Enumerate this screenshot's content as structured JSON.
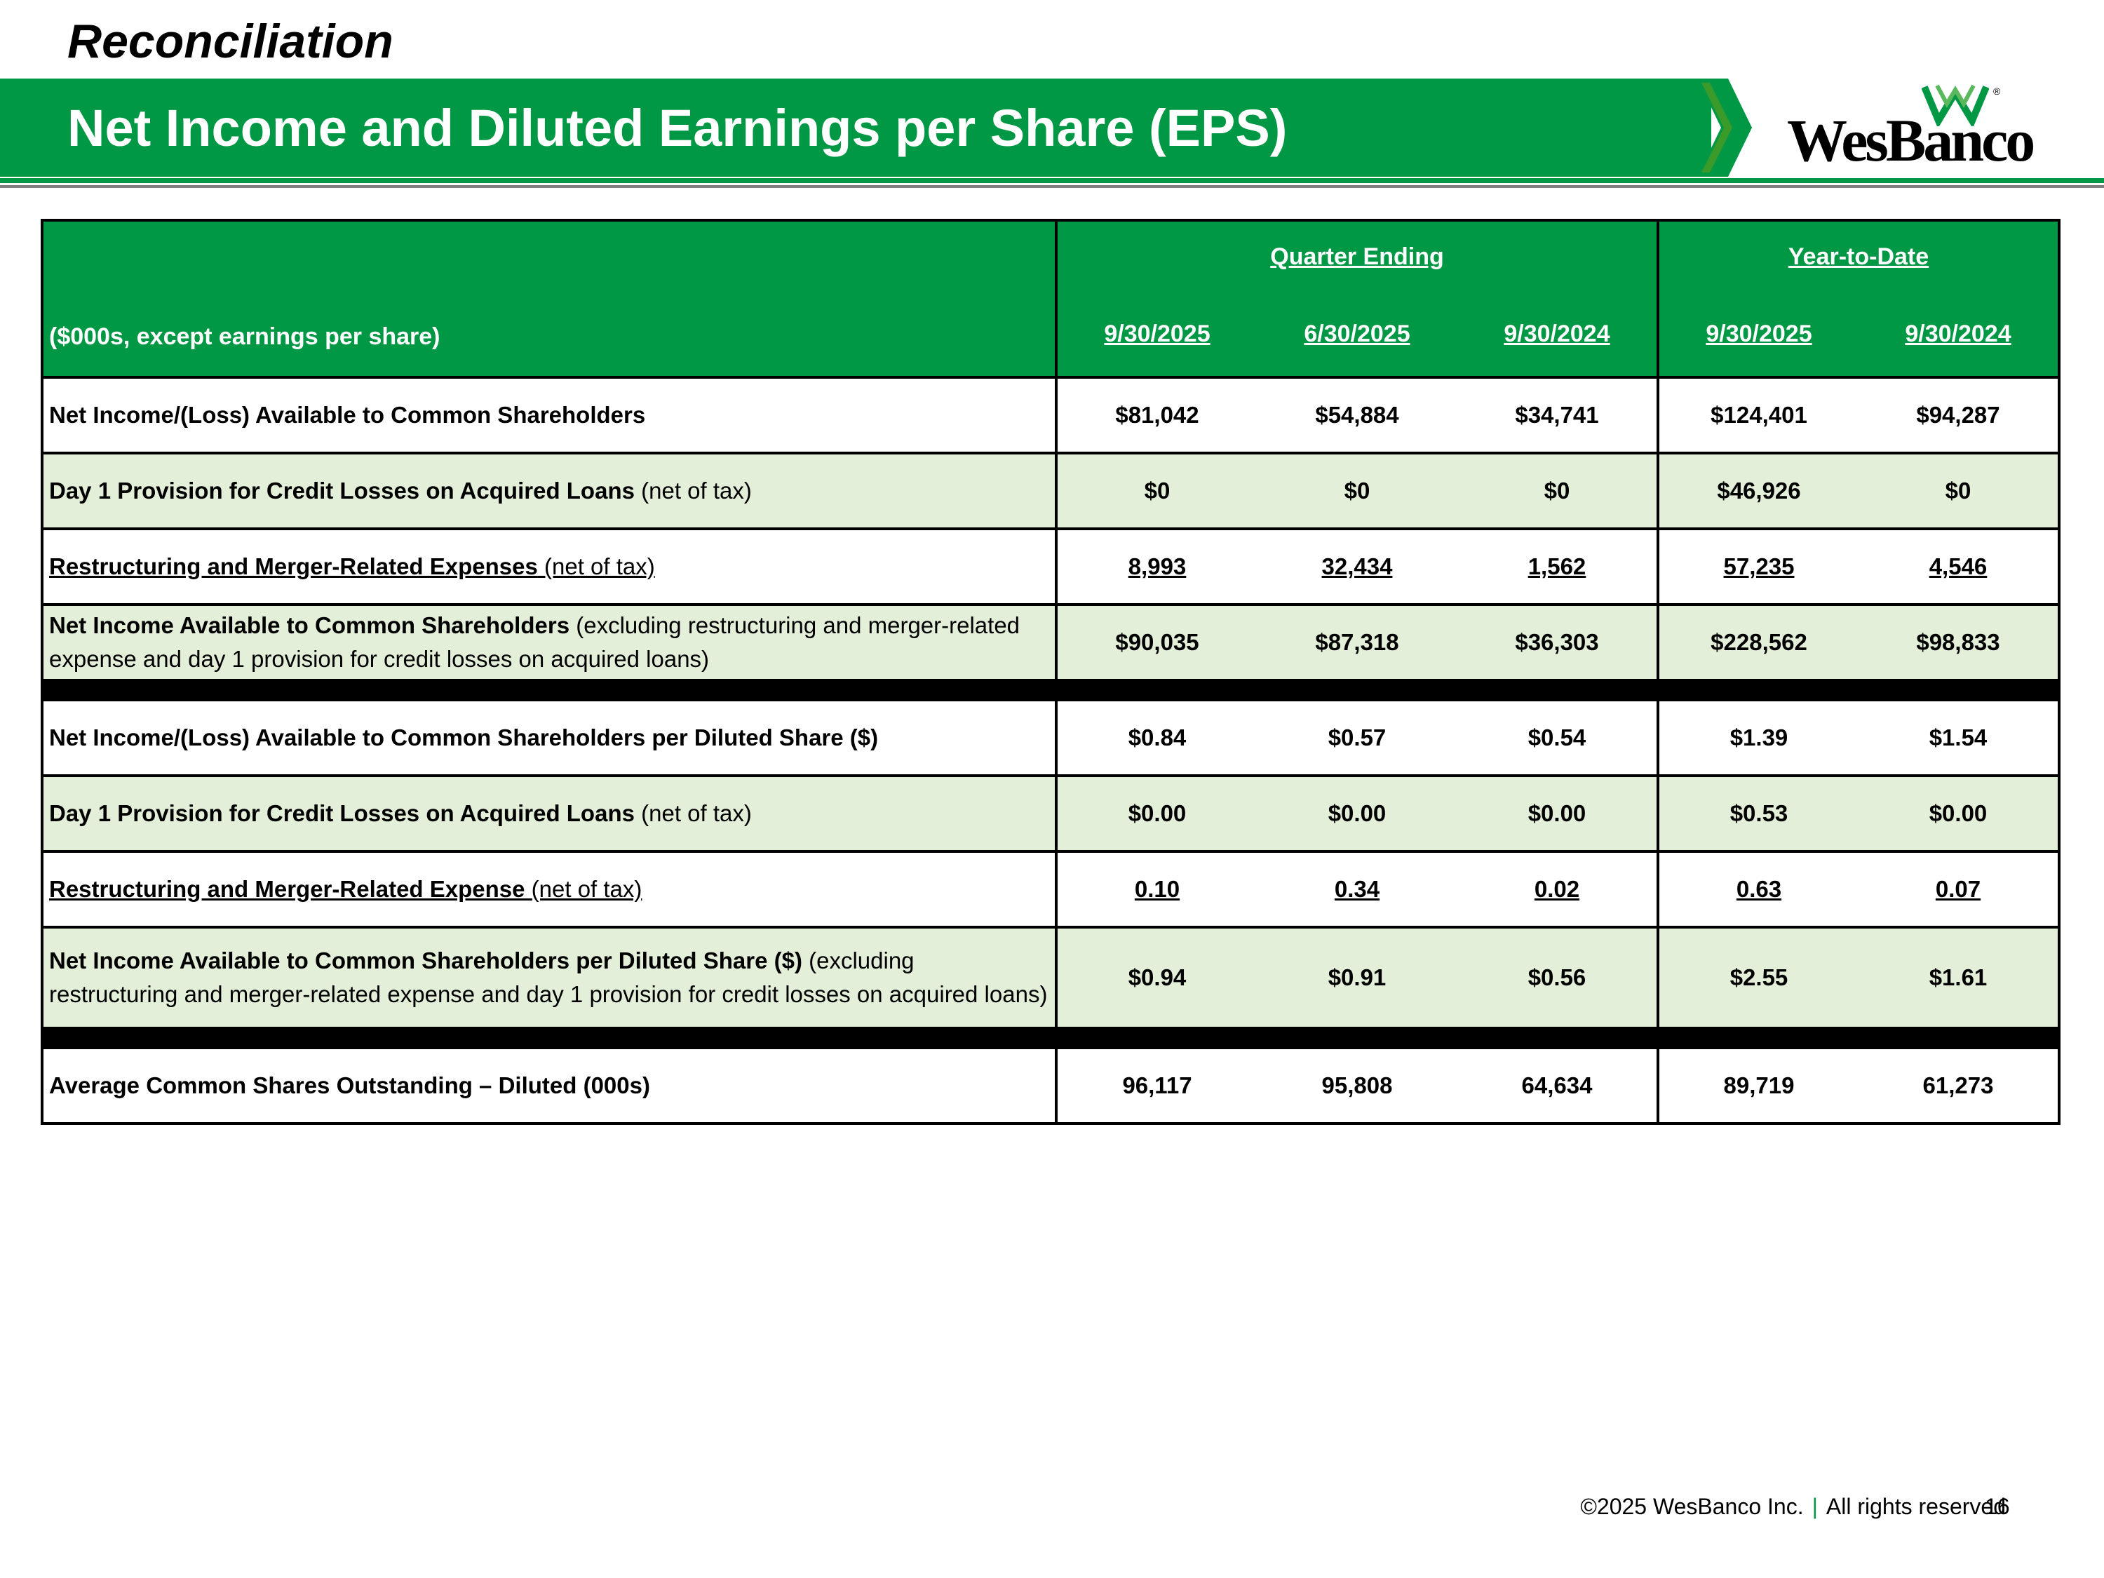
{
  "header": {
    "kicker": "Reconciliation",
    "title": "Net Income and Diluted Earnings per Share (EPS)"
  },
  "logo": {
    "text": "WesBanco",
    "registered": "®",
    "brand_color": "#009844"
  },
  "table": {
    "unit_label": "($000s, except earnings per share)",
    "groups": {
      "quarter": "Quarter Ending",
      "ytd": "Year-to-Date"
    },
    "dates": [
      "9/30/2025",
      "6/30/2025",
      "9/30/2024",
      "9/30/2025",
      "9/30/2024"
    ],
    "rows": [
      {
        "bold": "Net Income/(Loss) Available to Common Shareholders",
        "rest": "",
        "values": [
          "$81,042",
          "$54,884",
          "$34,741",
          "$124,401",
          "$94,287"
        ]
      },
      {
        "bold": "Day 1 Provision for Credit Losses on Acquired Loans",
        "rest": " (net of tax)",
        "values": [
          "$0",
          "$0",
          "$0",
          "$46,926",
          "$0"
        ]
      },
      {
        "bold": "Restructuring and Merger-Related Expenses",
        "rest": " (net of tax)",
        "values": [
          "8,993",
          "32,434",
          "1,562",
          "57,235",
          "4,546"
        ]
      },
      {
        "bold": "Net Income Available to Common Shareholders",
        "rest": " (excluding restructuring and merger-related expense and day 1 provision for credit losses on acquired loans)",
        "values": [
          "$90,035",
          "$87,318",
          "$36,303",
          "$228,562",
          "$98,833"
        ]
      },
      {
        "bold": "Net Income/(Loss) Available to Common Shareholders per Diluted Share ($)",
        "rest": "",
        "values": [
          "$0.84",
          "$0.57",
          "$0.54",
          "$1.39",
          "$1.54"
        ]
      },
      {
        "bold": "Day 1 Provision for Credit Losses on Acquired Loans",
        "rest": " (net of tax)",
        "values": [
          "$0.00",
          "$0.00",
          "$0.00",
          "$0.53",
          "$0.00"
        ]
      },
      {
        "bold": "Restructuring and Merger-Related Expense",
        "rest": " (net of tax)",
        "values": [
          "0.10",
          "0.34",
          "0.02",
          "0.63",
          "0.07"
        ]
      },
      {
        "bold": "Net Income Available to Common Shareholders per Diluted Share ($)",
        "rest": " (excluding restructuring and merger-related expense and day 1 provision for credit losses on acquired loans)",
        "values": [
          "$0.94",
          "$0.91",
          "$0.56",
          "$2.55",
          "$1.61"
        ]
      },
      {
        "bold": "Average Common Shares Outstanding – Diluted (000s)",
        "rest": "",
        "values": [
          "96,117",
          "95,808",
          "64,634",
          "89,719",
          "61,273"
        ]
      }
    ]
  },
  "footer": {
    "copyright": "©2025 WesBanco Inc.",
    "separator": "|",
    "rights": "All rights reserved",
    "page": "16"
  }
}
